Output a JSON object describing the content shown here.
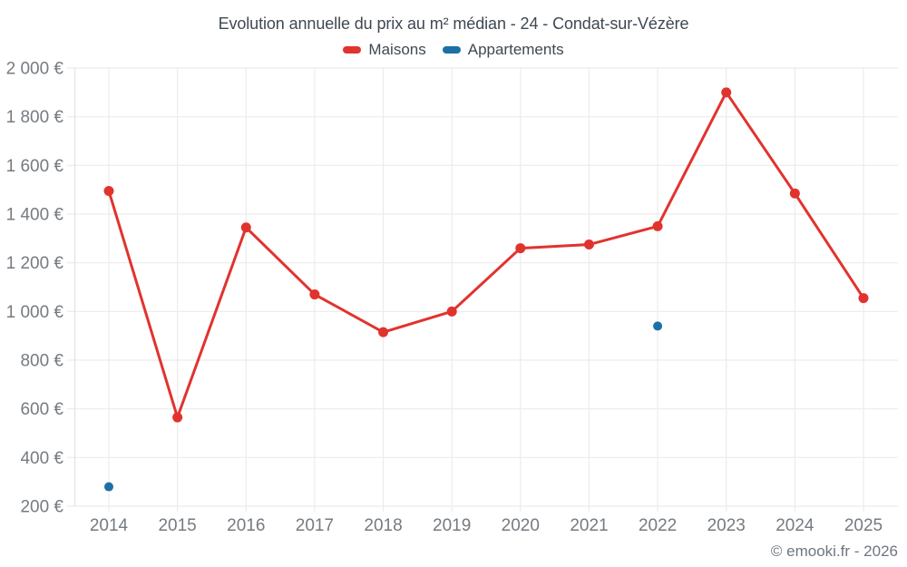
{
  "title": "Evolution annuelle du prix au m² médian - 24 - Condat-sur-Vézère",
  "footer": "© emooki.fr - 2026",
  "legend": [
    {
      "id": "maisons",
      "label": "Maisons",
      "color": "#e1332e"
    },
    {
      "id": "appartements",
      "label": "Appartements",
      "color": "#1c70a6"
    }
  ],
  "colors": {
    "background": "#ffffff",
    "title_text": "#3f4852",
    "axis_text": "#757b81",
    "gridline": "#ececec",
    "axis_line": "#e3e3e3",
    "maisons": "#e1332e",
    "appartements": "#1c70a6"
  },
  "chart_data": {
    "type": "line",
    "title": "Evolution annuelle du prix au m² médian - 24 - Condat-sur-Vézère",
    "x": [
      2014,
      2015,
      2016,
      2017,
      2018,
      2019,
      2020,
      2021,
      2022,
      2023,
      2024,
      2025
    ],
    "series": [
      {
        "name": "Maisons",
        "color": "#e1332e",
        "style": "line-with-markers",
        "values": [
          1495,
          565,
          1345,
          1070,
          915,
          1000,
          1260,
          1275,
          1350,
          1900,
          1485,
          1055
        ]
      },
      {
        "name": "Appartements",
        "color": "#1c70a6",
        "style": "markers-only",
        "values": [
          280,
          null,
          null,
          null,
          null,
          null,
          null,
          null,
          940,
          null,
          null,
          null
        ]
      }
    ],
    "ylim": [
      200,
      2000
    ],
    "ytick_step": 200,
    "ytick_suffix": " €",
    "grid": true,
    "legend_position": "top"
  }
}
